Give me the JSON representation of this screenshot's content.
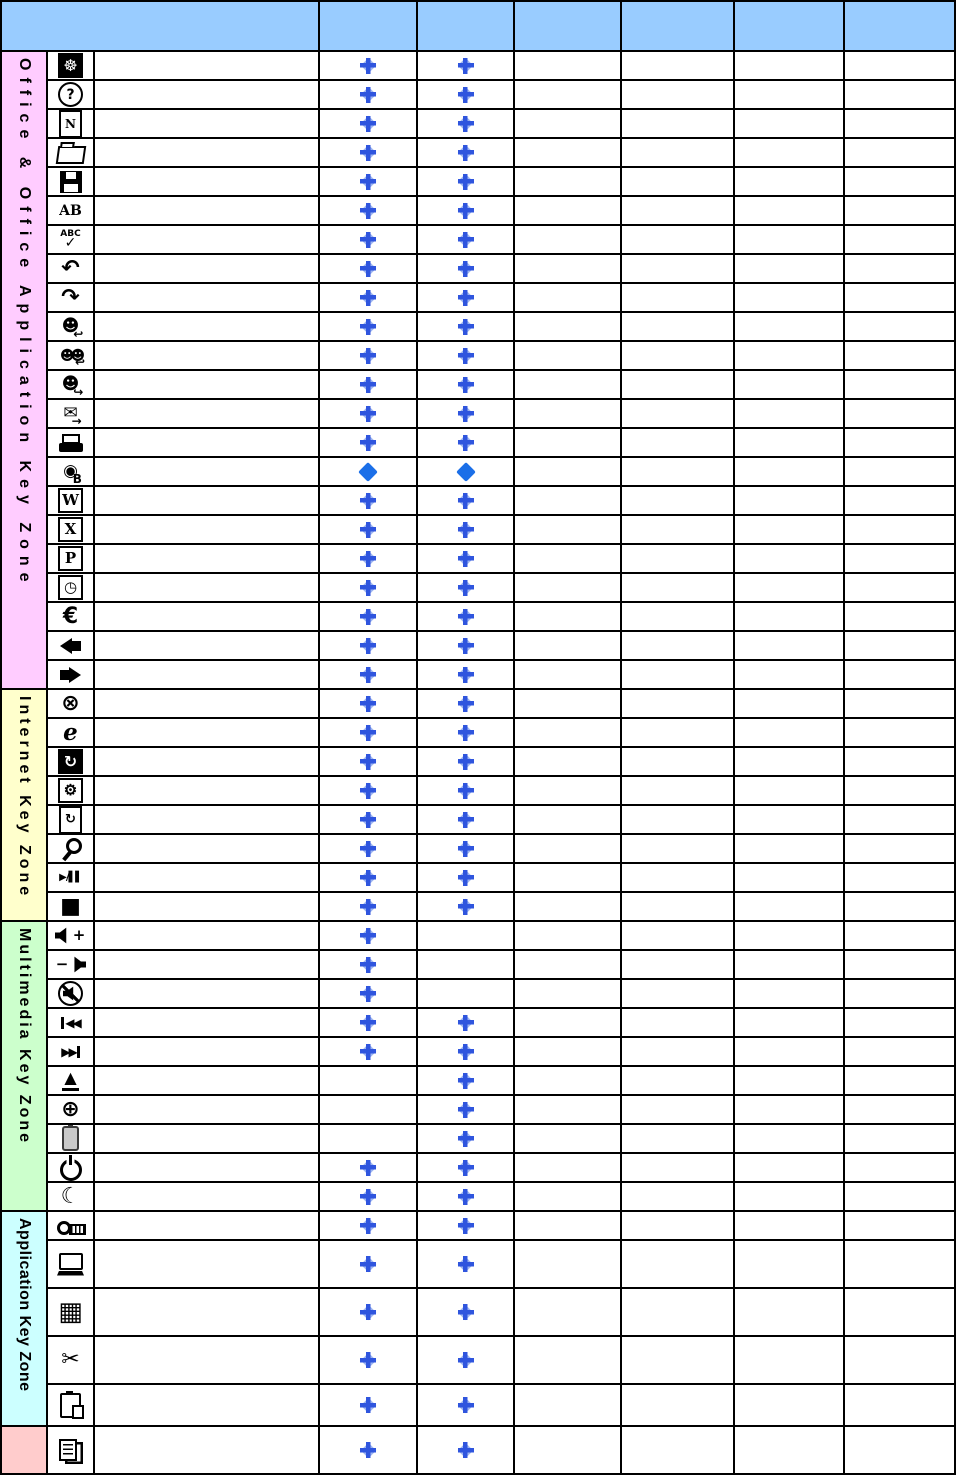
{
  "palette": {
    "header_bg": "#99CCFF",
    "office_zone": "#FFCCFF",
    "internet_zone": "#FFFFCC",
    "multimedia_zone": "#CCFFCC",
    "application_zone": "#CCFFFF",
    "bottom_zone": "#FFCCCC",
    "marker_cross": "#2F55DE",
    "marker_halo": "#9DB4F0",
    "marker_solid": "#1B6FE8",
    "grid_line": "#000000",
    "cell_bg": "#FFFFFF"
  },
  "header": {
    "cells": [
      "",
      "",
      "",
      "",
      "",
      "",
      ""
    ]
  },
  "zones": [
    {
      "id": "office",
      "label": "Office & Office Application Key Zone",
      "color": "#FFCCFF",
      "rows": 22
    },
    {
      "id": "internet",
      "label": "Internet Key Zone",
      "color": "#FFFFCC",
      "rows": 8
    },
    {
      "id": "multimedia",
      "label": "Multimedia Key Zone",
      "color": "#CCFFCC",
      "rows": 10
    },
    {
      "id": "application",
      "label": "Application Key Zone",
      "color": "#CCFFFF",
      "rows": 5
    },
    {
      "id": "bottom",
      "label": "",
      "color": "#FFCCCC",
      "rows": 1
    }
  ],
  "rows": [
    {
      "icon": {
        "name": "pinwheel-icon",
        "glyph": "☸",
        "v": "inverse"
      },
      "m": [
        "cross",
        "cross"
      ]
    },
    {
      "icon": {
        "name": "help-icon",
        "glyph": "?",
        "v": "circle"
      },
      "m": [
        "cross",
        "cross"
      ]
    },
    {
      "icon": {
        "name": "new-document-icon",
        "glyph": "N",
        "v": "page"
      },
      "m": [
        "cross",
        "cross"
      ]
    },
    {
      "icon": {
        "name": "open-folder-icon",
        "v": "folder"
      },
      "m": [
        "cross",
        "cross"
      ]
    },
    {
      "icon": {
        "name": "save-icon",
        "v": "floppy"
      },
      "m": [
        "cross",
        "cross"
      ]
    },
    {
      "icon": {
        "name": "font-ab-icon",
        "glyph": "AB",
        "v": "text"
      },
      "m": [
        "cross",
        "cross"
      ]
    },
    {
      "icon": {
        "name": "spellcheck-icon",
        "glyph": "ABC",
        "sub": "✓",
        "v": "stack"
      },
      "m": [
        "cross",
        "cross"
      ]
    },
    {
      "icon": {
        "name": "undo-icon",
        "glyph": "↶",
        "v": "big"
      },
      "m": [
        "cross",
        "cross"
      ]
    },
    {
      "icon": {
        "name": "redo-icon",
        "glyph": "↷",
        "v": "big"
      },
      "m": [
        "cross",
        "cross"
      ]
    },
    {
      "icon": {
        "name": "reply-icon",
        "glyph": "☻",
        "corner": "↩",
        "v": "combo"
      },
      "m": [
        "cross",
        "cross"
      ]
    },
    {
      "icon": {
        "name": "reply-all-icon",
        "glyph": "☻☻",
        "corner": "↩",
        "v": "combo tight"
      },
      "m": [
        "cross",
        "cross"
      ]
    },
    {
      "icon": {
        "name": "forward-mail-icon",
        "glyph": "☻",
        "corner": "↪",
        "v": "combo"
      },
      "m": [
        "cross",
        "cross"
      ]
    },
    {
      "icon": {
        "name": "send-mail-icon",
        "glyph": "✉",
        "corner": "→",
        "v": "combo"
      },
      "m": [
        "cross",
        "cross"
      ]
    },
    {
      "icon": {
        "name": "print-icon",
        "v": "printer"
      },
      "m": [
        "cross",
        "cross"
      ]
    },
    {
      "icon": {
        "name": "projector-b-icon",
        "glyph": "◉",
        "corner": "B",
        "v": "combo"
      },
      "m": [
        "solid",
        "solid"
      ]
    },
    {
      "icon": {
        "name": "word-icon",
        "glyph": "W",
        "v": "boxed"
      },
      "m": [
        "cross",
        "cross"
      ]
    },
    {
      "icon": {
        "name": "excel-icon",
        "glyph": "X",
        "v": "boxed"
      },
      "m": [
        "cross",
        "cross"
      ]
    },
    {
      "icon": {
        "name": "powerpoint-icon",
        "glyph": "P",
        "v": "boxed"
      },
      "m": [
        "cross",
        "cross"
      ]
    },
    {
      "icon": {
        "name": "outlook-clock-icon",
        "glyph": "◷",
        "v": "boxed"
      },
      "m": [
        "cross",
        "cross"
      ]
    },
    {
      "icon": {
        "name": "euro-icon",
        "glyph": "€",
        "v": "big"
      },
      "m": [
        "cross",
        "cross"
      ]
    },
    {
      "icon": {
        "name": "back-arrow-icon",
        "v": "arrow-left"
      },
      "m": [
        "cross",
        "cross"
      ]
    },
    {
      "icon": {
        "name": "forward-arrow-icon",
        "v": "arrow-right"
      },
      "m": [
        "cross",
        "cross"
      ]
    },
    {
      "icon": {
        "name": "stop-loading-icon",
        "glyph": "⊗",
        "v": "big"
      },
      "m": [
        "cross",
        "cross"
      ]
    },
    {
      "icon": {
        "name": "internet-explorer-icon",
        "glyph": "e",
        "v": "ie"
      },
      "m": [
        "cross",
        "cross"
      ]
    },
    {
      "icon": {
        "name": "refresh-icon",
        "glyph": "↻",
        "v": "inverse"
      },
      "m": [
        "cross",
        "cross"
      ]
    },
    {
      "icon": {
        "name": "settings-gear-icon",
        "glyph": "⚙",
        "v": "boxed"
      },
      "m": [
        "cross",
        "cross"
      ]
    },
    {
      "icon": {
        "name": "reload-page-icon",
        "glyph": "↻",
        "v": "page sans"
      },
      "m": [
        "cross",
        "cross"
      ]
    },
    {
      "icon": {
        "name": "search-icon",
        "v": "magnifier"
      },
      "m": [
        "cross",
        "cross"
      ]
    },
    {
      "icon": {
        "name": "play-pause-icon",
        "glyph": "▶/▌▌",
        "v": "textsm"
      },
      "m": [
        "cross",
        "cross"
      ]
    },
    {
      "icon": {
        "name": "stop-media-icon",
        "glyph": "■",
        "v": "big"
      },
      "m": [
        "cross",
        "cross"
      ]
    },
    {
      "icon": {
        "name": "volume-up-icon",
        "extra": "+",
        "v": "speaker"
      },
      "m": [
        "cross",
        ""
      ]
    },
    {
      "icon": {
        "name": "volume-down-icon",
        "extra": "−",
        "v": "speaker rev"
      },
      "m": [
        "cross",
        ""
      ]
    },
    {
      "icon": {
        "name": "mute-icon",
        "v": "speaker mute"
      },
      "m": [
        "cross",
        ""
      ]
    },
    {
      "icon": {
        "name": "previous-track-icon",
        "glyph": "◀◀",
        "v": "track-prev"
      },
      "m": [
        "cross",
        "cross"
      ]
    },
    {
      "icon": {
        "name": "next-track-icon",
        "glyph": "▶▶",
        "v": "track-next"
      },
      "m": [
        "cross",
        "cross"
      ]
    },
    {
      "icon": {
        "name": "eject-icon",
        "glyph": "▲",
        "v": "eject"
      },
      "m": [
        "",
        "cross"
      ]
    },
    {
      "icon": {
        "name": "cd-disc-icon",
        "glyph": "⊕",
        "v": "big"
      },
      "m": [
        "",
        "cross"
      ]
    },
    {
      "icon": {
        "name": "battery-icon",
        "v": "battery"
      },
      "m": [
        "",
        "cross"
      ]
    },
    {
      "icon": {
        "name": "power-icon",
        "v": "power"
      },
      "m": [
        "cross",
        "cross"
      ]
    },
    {
      "icon": {
        "name": "sleep-moon-icon",
        "glyph": "☾",
        "v": "big"
      },
      "m": [
        "cross",
        "cross"
      ]
    },
    {
      "icon": {
        "name": "key-lock-icon",
        "v": "key"
      },
      "m": [
        "cross",
        "cross"
      ]
    },
    {
      "icon": {
        "name": "computer-laptop-icon",
        "v": "laptop"
      },
      "m": [
        "cross",
        "cross"
      ]
    },
    {
      "icon": {
        "name": "calculator-icon",
        "glyph": "▦",
        "v": "huge"
      },
      "m": [
        "cross",
        "cross"
      ]
    },
    {
      "icon": {
        "name": "cut-scissors-icon",
        "glyph": "✂",
        "v": "big"
      },
      "m": [
        "cross",
        "cross"
      ]
    },
    {
      "icon": {
        "name": "paste-clipboard-icon",
        "v": "clipboard"
      },
      "m": [
        "cross",
        "cross"
      ]
    },
    {
      "icon": {
        "name": "copy-documents-icon",
        "v": "copy"
      },
      "m": [
        "cross",
        "cross"
      ]
    }
  ]
}
